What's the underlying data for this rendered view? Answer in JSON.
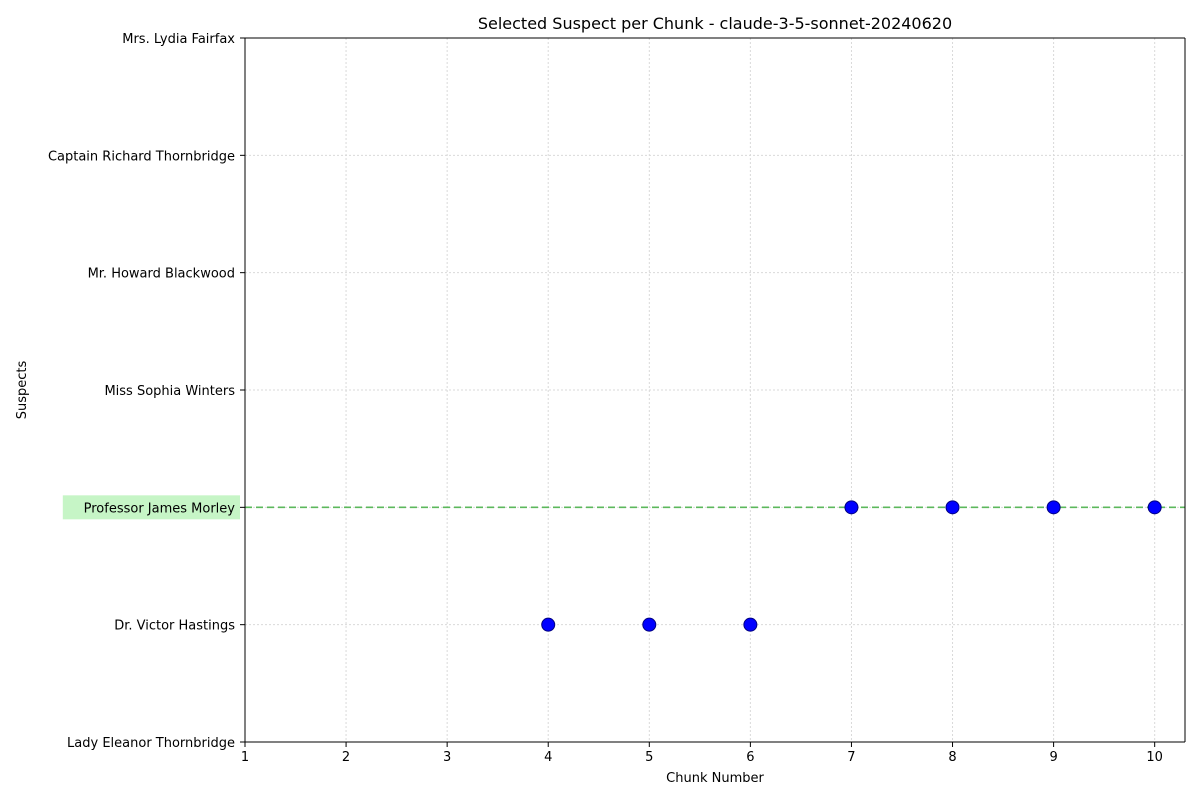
{
  "chart_data": {
    "type": "scatter",
    "title": "Selected Suspect per Chunk - claude-3-5-sonnet-20240620",
    "xlabel": "Chunk Number",
    "ylabel": "Suspects",
    "x_ticks": [
      1,
      2,
      3,
      4,
      5,
      6,
      7,
      8,
      9,
      10
    ],
    "xlim": [
      1,
      10.3
    ],
    "categories": [
      "Lady Eleanor Thornbridge",
      "Dr. Victor Hastings",
      "Professor James Morley",
      "Miss Sophia Winters",
      "Mr. Howard Blackwood",
      "Captain Richard Thornbridge",
      "Mrs. Lydia Fairfax"
    ],
    "highlighted_category": "Professor James Morley",
    "grid": true,
    "points": [
      {
        "x": 4,
        "y": "Dr. Victor Hastings"
      },
      {
        "x": 5,
        "y": "Dr. Victor Hastings"
      },
      {
        "x": 6,
        "y": "Dr. Victor Hastings"
      },
      {
        "x": 7,
        "y": "Professor James Morley"
      },
      {
        "x": 8,
        "y": "Professor James Morley"
      },
      {
        "x": 9,
        "y": "Professor James Morley"
      },
      {
        "x": 10,
        "y": "Professor James Morley"
      }
    ],
    "colors": {
      "points": "#0000ff",
      "highlight_line": "#5cb85c",
      "highlight_box": "#c6f5c6",
      "grid": "#d9d9d9"
    }
  }
}
